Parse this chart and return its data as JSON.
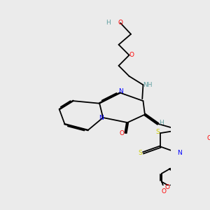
{
  "bg_color": "#ebebeb",
  "atom_colors": {
    "C": "#000000",
    "N": "#0000ff",
    "O": "#ff0000",
    "S": "#cccc00",
    "H": "#5f9ea0"
  },
  "bond_color": "#000000",
  "bond_width": 1.3,
  "figsize": [
    3.0,
    3.0
  ],
  "dpi": 100
}
